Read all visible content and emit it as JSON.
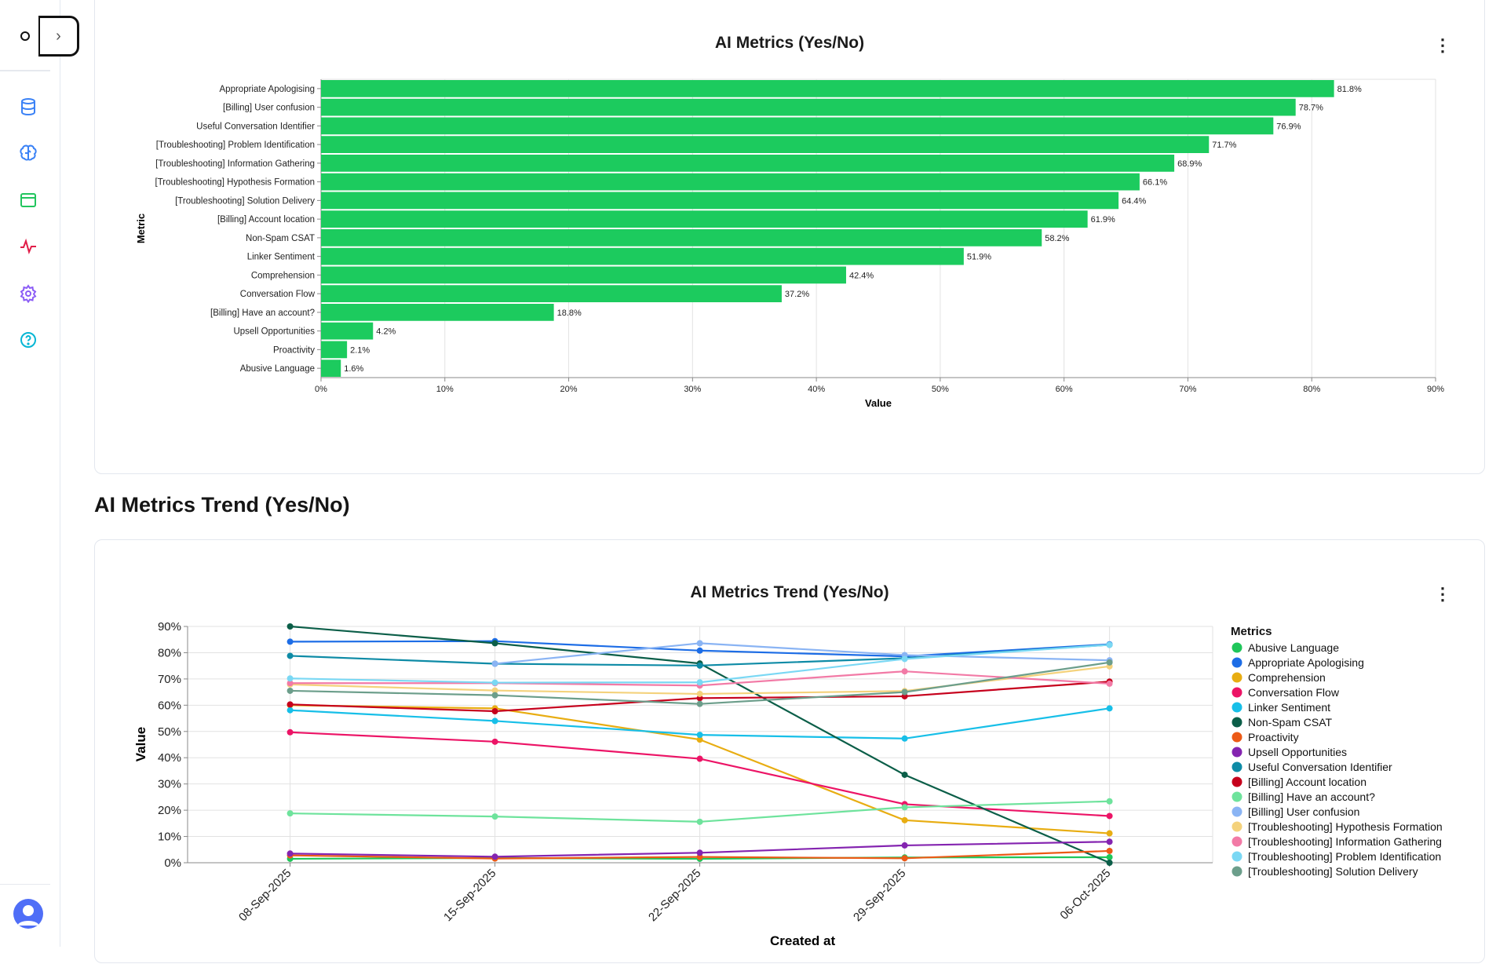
{
  "sidebar": {
    "expand_label": "›",
    "items": [
      {
        "icon": "database-icon",
        "color": "#3b82f6"
      },
      {
        "icon": "brain-icon",
        "color": "#3b82f6"
      },
      {
        "icon": "browser-window-icon",
        "color": "#22c55e"
      },
      {
        "icon": "activity-pulse-icon",
        "color": "#e11d48"
      },
      {
        "icon": "gear-icon",
        "color": "#8b5cf6"
      },
      {
        "icon": "help-circle-icon",
        "color": "#06b6d4"
      }
    ]
  },
  "bar_card": {
    "title": "AI Metrics (Yes/No)",
    "menu": "⋮"
  },
  "section_heading": "AI Metrics Trend (Yes/No)",
  "trend_card": {
    "title": "AI Metrics Trend (Yes/No)",
    "menu": "⋮"
  },
  "chart_data": [
    {
      "type": "bar",
      "orientation": "horizontal",
      "title": "AI Metrics (Yes/No)",
      "xlabel": "Value",
      "ylabel": "Metric",
      "xlim": [
        0,
        90
      ],
      "x_ticks": [
        "0%",
        "10%",
        "20%",
        "30%",
        "40%",
        "50%",
        "60%",
        "70%",
        "80%",
        "90%"
      ],
      "grid": true,
      "bar_color": "#1ccb5e",
      "categories": [
        "Appropriate Apologising",
        "[Billing] User confusion",
        "Useful Conversation Identifier",
        "[Troubleshooting] Problem Identification",
        "[Troubleshooting] Information Gathering",
        "[Troubleshooting] Hypothesis Formation",
        "[Troubleshooting] Solution Delivery",
        "[Billing] Account location",
        "Non-Spam CSAT",
        "Linker Sentiment",
        "Comprehension",
        "Conversation Flow",
        "[Billing] Have an account?",
        "Upsell Opportunities",
        "Proactivity",
        "Abusive Language"
      ],
      "values": [
        81.8,
        78.7,
        76.9,
        71.7,
        68.9,
        66.1,
        64.4,
        61.9,
        58.2,
        51.9,
        42.4,
        37.2,
        18.8,
        4.2,
        2.1,
        1.6
      ],
      "data_labels": [
        "81.8%",
        "78.7%",
        "76.9%",
        "71.7%",
        "68.9%",
        "66.1%",
        "64.4%",
        "61.9%",
        "58.2%",
        "51.9%",
        "42.4%",
        "37.2%",
        "18.8%",
        "4.2%",
        "2.1%",
        "1.6%"
      ]
    },
    {
      "type": "line",
      "title": "AI Metrics Trend (Yes/No)",
      "xlabel": "Created at",
      "ylabel": "Value",
      "ylim": [
        0,
        90
      ],
      "y_ticks": [
        "0%",
        "10%",
        "20%",
        "30%",
        "40%",
        "50%",
        "60%",
        "70%",
        "80%",
        "90%"
      ],
      "grid": true,
      "legend_title": "Metrics",
      "legend_position": "right",
      "x": [
        "08-Sep-2025",
        "15-Sep-2025",
        "22-Sep-2025",
        "29-Sep-2025",
        "06-Oct-2025"
      ],
      "series": [
        {
          "name": "Abusive Language",
          "color": "#1fc65a",
          "values": [
            1.5,
            1.8,
            1.5,
            2.0,
            2.1
          ]
        },
        {
          "name": "Appropriate Apologising",
          "color": "#1d6de6",
          "values": [
            84.2,
            84.4,
            80.8,
            78.6,
            83.2
          ]
        },
        {
          "name": "Comprehension",
          "color": "#e8ad12",
          "values": [
            60.0,
            58.8,
            46.9,
            16.2,
            11.2
          ]
        },
        {
          "name": "Conversation Flow",
          "color": "#ec1466",
          "values": [
            49.7,
            46.1,
            39.6,
            22.3,
            17.8
          ]
        },
        {
          "name": "Linker Sentiment",
          "color": "#17bfe8",
          "values": [
            58.1,
            54.0,
            48.7,
            47.3,
            58.8
          ]
        },
        {
          "name": "Non-Spam CSAT",
          "color": "#0b5e48",
          "values": [
            90.0,
            83.6,
            75.9,
            33.5,
            0.0
          ]
        },
        {
          "name": "Proactivity",
          "color": "#ec5a16",
          "values": [
            2.8,
            1.6,
            2.2,
            1.7,
            4.5
          ]
        },
        {
          "name": "Upsell Opportunities",
          "color": "#8424b0",
          "values": [
            3.5,
            2.3,
            3.8,
            6.6,
            8.0
          ]
        },
        {
          "name": "Useful Conversation Identifier",
          "color": "#0e8ba6",
          "values": [
            78.8,
            75.8,
            75.1,
            77.9,
            83.0
          ]
        },
        {
          "name": "[Billing] Account location",
          "color": "#c6001c",
          "values": [
            60.3,
            57.7,
            62.7,
            63.4,
            69.0
          ]
        },
        {
          "name": "[Billing] Have an account?",
          "color": "#6ee39c",
          "values": [
            18.8,
            17.6,
            15.6,
            21.1,
            23.4
          ]
        },
        {
          "name": "[Billing] User confusion",
          "color": "#8ab4f4",
          "values": [
            null,
            75.8,
            83.6,
            79.1,
            77.1
          ]
        },
        {
          "name": "[Troubleshooting] Hypothesis Formation",
          "color": "#f4d27c",
          "values": [
            67.9,
            65.6,
            64.3,
            65.4,
            74.8
          ]
        },
        {
          "name": "[Troubleshooting] Information Gathering",
          "color": "#f27aa6",
          "values": [
            68.4,
            68.4,
            67.5,
            72.9,
            68.2
          ]
        },
        {
          "name": "[Troubleshooting] Problem Identification",
          "color": "#7ad8f4",
          "values": [
            70.2,
            68.6,
            68.7,
            77.6,
            83.0
          ]
        },
        {
          "name": "[Troubleshooting] Solution Delivery",
          "color": "#6c9e8b",
          "values": [
            65.5,
            63.8,
            60.5,
            65.0,
            76.3
          ]
        }
      ]
    }
  ]
}
